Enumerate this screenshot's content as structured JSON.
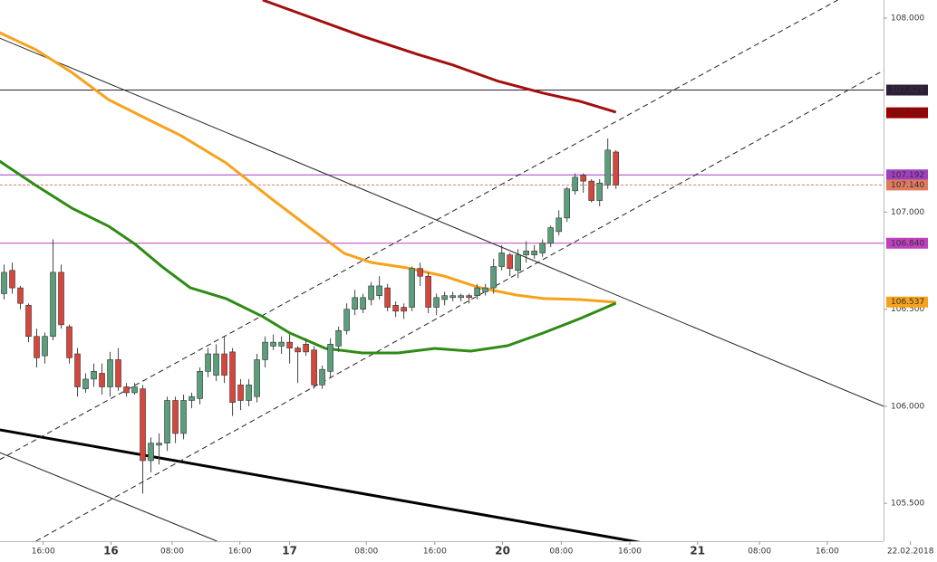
{
  "chart_data": {
    "type": "candlestick",
    "xlim": [
      -0.5,
      107.8
    ],
    "ylim": [
      105.305,
      108.093
    ],
    "xticks": [
      {
        "value": 4.8,
        "label": "16:00"
      },
      {
        "value": 13.1,
        "label": "16"
      },
      {
        "value": 20.6,
        "label": "08:00"
      },
      {
        "value": 28.9,
        "label": "16:00"
      },
      {
        "value": 35,
        "label": "17"
      },
      {
        "value": 44.4,
        "label": "08:00"
      },
      {
        "value": 52.8,
        "label": "16:00"
      },
      {
        "value": 61.1,
        "label": "20"
      },
      {
        "value": 68.3,
        "label": "08:00"
      },
      {
        "value": 76.7,
        "label": "16:00"
      },
      {
        "value": 85,
        "label": "21"
      },
      {
        "value": 92.6,
        "label": "08:00"
      },
      {
        "value": 100.9,
        "label": "16:00"
      },
      {
        "value": 111.1,
        "label": "22.02.2018"
      }
    ],
    "yticks": [
      {
        "value": 108,
        "label": "108.000"
      },
      {
        "value": 107,
        "label": "107.000"
      },
      {
        "value": 106.5,
        "label": "106.500"
      },
      {
        "value": 106,
        "label": "106.000"
      },
      {
        "value": 105.5,
        "label": "105.500"
      }
    ],
    "up_color": "#5a9e7c",
    "down_color": "#d5473d",
    "candles": {
      "x": [
        0,
        1,
        2,
        3,
        4,
        5,
        6,
        7,
        8,
        9,
        10,
        11,
        12,
        13,
        14,
        15,
        16,
        17,
        18,
        19,
        20,
        21,
        22,
        23,
        24,
        25,
        26,
        27,
        28,
        29,
        30,
        31,
        32,
        33,
        34,
        35,
        36,
        37,
        38,
        39,
        40,
        41,
        42,
        43,
        44,
        45,
        46,
        47,
        48,
        49,
        50,
        51,
        52,
        53,
        54,
        55,
        56,
        57,
        58,
        59,
        60,
        61,
        62,
        63,
        64,
        65,
        66,
        67,
        68,
        69,
        70,
        71,
        72,
        73,
        74,
        75
      ],
      "open": [
        106.58,
        106.7,
        106.61,
        106.52,
        106.36,
        106.26,
        106.36,
        106.69,
        106.41,
        106.27,
        106.09,
        106.14,
        106.17,
        106.1,
        106.24,
        106.1,
        106.07,
        106.09,
        105.72,
        105.8,
        105.81,
        106.03,
        105.86,
        106.03,
        106.04,
        106.18,
        106.16,
        106.27,
        106.28,
        106.11,
        106.03,
        106.05,
        106.24,
        106.31,
        106.31,
        106.33,
        106.3,
        106.32,
        106.29,
        106.11,
        106.18,
        106.31,
        106.39,
        106.5,
        106.5,
        106.55,
        106.57,
        106.61,
        106.52,
        106.51,
        106.51,
        106.71,
        106.67,
        106.51,
        106.55,
        106.56,
        106.56,
        106.57,
        106.57,
        106.59,
        106.61,
        106.72,
        106.78,
        106.7,
        106.78,
        106.78,
        106.79,
        106.84,
        106.9,
        106.97,
        107.11,
        107.19,
        107.16,
        107.06,
        107.14,
        107.31
      ],
      "high": [
        106.73,
        106.74,
        106.62,
        106.53,
        106.4,
        106.38,
        106.86,
        106.73,
        106.42,
        106.3,
        106.17,
        106.22,
        106.22,
        106.28,
        106.3,
        106.12,
        106.12,
        106.11,
        105.84,
        105.86,
        106.05,
        106.05,
        106.06,
        106.07,
        106.2,
        106.3,
        106.32,
        106.36,
        106.3,
        106.14,
        106.14,
        106.27,
        106.36,
        106.37,
        106.36,
        106.37,
        106.31,
        106.35,
        106.31,
        106.21,
        106.35,
        106.41,
        106.53,
        106.6,
        106.58,
        106.64,
        106.67,
        106.63,
        106.54,
        106.53,
        106.72,
        106.74,
        106.69,
        106.58,
        106.59,
        106.59,
        106.58,
        106.58,
        106.63,
        106.63,
        106.76,
        106.83,
        106.79,
        106.81,
        106.85,
        106.83,
        106.86,
        106.93,
        107.01,
        107.13,
        107.2,
        107.2,
        107.17,
        107.17,
        107.38,
        107.32
      ],
      "low": [
        106.55,
        106.58,
        106.5,
        106.33,
        106.2,
        106.22,
        106.34,
        106.4,
        106.22,
        106.05,
        106.07,
        106.1,
        106.06,
        106.05,
        106.08,
        106.05,
        106.06,
        105.55,
        105.66,
        105.7,
        105.77,
        105.81,
        105.83,
        105.99,
        106.01,
        106.15,
        106.13,
        106.12,
        105.95,
        105.98,
        106.0,
        106.02,
        106.2,
        106.29,
        106.27,
        106.22,
        106.12,
        106.26,
        106.09,
        106.09,
        106.15,
        106.28,
        106.37,
        106.47,
        106.48,
        106.52,
        106.55,
        106.49,
        106.46,
        106.45,
        106.49,
        106.62,
        106.48,
        106.47,
        106.52,
        106.54,
        106.54,
        106.53,
        106.55,
        106.57,
        106.58,
        106.7,
        106.67,
        106.66,
        106.74,
        106.76,
        106.77,
        106.82,
        106.88,
        106.95,
        107.09,
        107.1,
        107.05,
        107.03,
        107.12,
        107.12
      ],
      "close": [
        106.69,
        106.61,
        106.53,
        106.36,
        106.25,
        106.36,
        106.69,
        106.42,
        106.25,
        106.1,
        106.14,
        106.18,
        106.1,
        106.24,
        106.1,
        106.07,
        106.1,
        105.72,
        105.81,
        105.81,
        106.03,
        105.86,
        106.03,
        106.05,
        106.18,
        106.27,
        106.27,
        106.16,
        106.02,
        106.03,
        106.11,
        106.24,
        106.33,
        106.33,
        106.33,
        106.3,
        106.28,
        106.28,
        106.11,
        106.19,
        106.32,
        106.39,
        106.5,
        106.56,
        106.56,
        106.62,
        106.62,
        106.51,
        106.49,
        106.49,
        106.71,
        106.67,
        106.51,
        106.56,
        106.57,
        106.57,
        106.57,
        106.56,
        106.61,
        106.61,
        106.72,
        106.79,
        106.71,
        106.78,
        106.8,
        106.8,
        106.84,
        106.92,
        106.97,
        107.12,
        107.18,
        107.16,
        107.06,
        107.15,
        107.32,
        107.14
      ]
    },
    "series": [
      {
        "color": "#a30f0f",
        "width": 3,
        "x": [
          31.7,
          37.2,
          43.9,
          50.6,
          55,
          60.6,
          66.1,
          70.6,
          75
        ],
        "values": [
          108.093,
          108.009,
          107.907,
          107.814,
          107.758,
          107.674,
          107.613,
          107.571,
          107.515
        ]
      },
      {
        "color": "#f7a21b",
        "width": 3,
        "x": [
          -0.56,
          3.9,
          8.3,
          12.8,
          17.2,
          21.7,
          27.2,
          32.8,
          37.2,
          41.7,
          45,
          49.4,
          53.9,
          58.3,
          62.8,
          66.1,
          70.6,
          75
        ],
        "values": [
          107.925,
          107.837,
          107.72,
          107.58,
          107.487,
          107.394,
          107.254,
          107.068,
          106.928,
          106.788,
          106.741,
          106.713,
          106.671,
          106.611,
          106.573,
          106.555,
          106.55,
          106.536
        ]
      },
      {
        "color": "#2e8b14",
        "width": 3,
        "x": [
          -0.56,
          3.9,
          8.3,
          12.8,
          16.1,
          19.4,
          22.8,
          27.2,
          31.7,
          35,
          39.4,
          43.9,
          48.3,
          52.8,
          57.2,
          61.7,
          66.1,
          70.6,
          75
        ],
        "values": [
          107.263,
          107.138,
          107.021,
          106.928,
          106.834,
          106.718,
          106.611,
          106.555,
          106.462,
          106.378,
          106.298,
          106.275,
          106.275,
          106.298,
          106.284,
          106.312,
          106.378,
          106.452,
          106.531
        ]
      }
    ],
    "trendlines": [
      {
        "color": "#222",
        "width": 1,
        "dash": false,
        "x": [
          -0.56,
          107.8
        ],
        "values": [
          107.897,
          106.0
        ]
      },
      {
        "color": "#000",
        "width": 3,
        "dash": false,
        "x": [
          -0.56,
          78.3
        ],
        "values": [
          105.879,
          105.296
        ]
      },
      {
        "color": "#222",
        "width": 1,
        "dash": false,
        "x": [
          -0.56,
          26.1
        ],
        "values": [
          105.762,
          105.305
        ]
      },
      {
        "color": "#222",
        "width": 1,
        "dash": true,
        "x": [
          -0.56,
          102.2
        ],
        "values": [
          105.725,
          108.093
        ]
      },
      {
        "color": "#222",
        "width": 1,
        "dash": true,
        "x": [
          3.9,
          107.8
        ],
        "values": [
          105.305,
          107.73
        ]
      }
    ],
    "levels": [
      {
        "value": 107.629,
        "label": "107.629",
        "color": "#2d1f3a",
        "text_color": "#fff",
        "line": true,
        "dash": false
      },
      {
        "value": 107.512,
        "label": "107.512",
        "color": "#9b0000",
        "text_color": "#fff",
        "line": false,
        "dash": false
      },
      {
        "value": 107.192,
        "label": "107.192",
        "color": "#a040c0",
        "text_color": "#fff",
        "line": true,
        "dash": false
      },
      {
        "value": 107.14,
        "label": "107.140",
        "color": "#e07a5f",
        "text_color": "#fff",
        "line": true,
        "dash": true
      },
      {
        "value": 106.84,
        "label": "106.840",
        "color": "#c040c0",
        "text_color": "#fff",
        "line": true,
        "dash": false
      },
      {
        "value": 106.537,
        "label": "106.537",
        "color": "#f7a21b",
        "text_color": "#000",
        "line": false,
        "dash": false
      }
    ]
  }
}
